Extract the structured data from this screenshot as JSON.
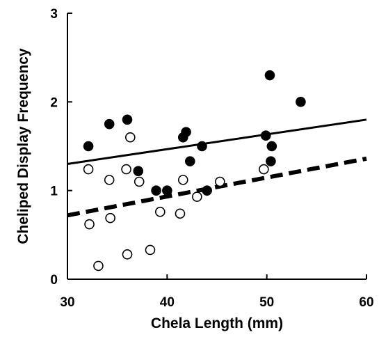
{
  "chart_data": {
    "type": "scatter",
    "title": "",
    "xlabel": "Chela Length (mm)",
    "ylabel": "Cheliped Display Frequency",
    "xlim": [
      30,
      60
    ],
    "ylim": [
      0,
      3
    ],
    "xticks": [
      30,
      40,
      50,
      60
    ],
    "yticks": [
      0,
      1,
      2,
      3
    ],
    "grid": false,
    "series": [
      {
        "marker": "filled-circle",
        "color": "#000000",
        "points": [
          [
            32.1,
            1.5
          ],
          [
            34.2,
            1.75
          ],
          [
            36.0,
            1.8
          ],
          [
            37.1,
            1.22
          ],
          [
            38.9,
            1.0
          ],
          [
            40.0,
            1.0
          ],
          [
            41.6,
            1.6
          ],
          [
            41.9,
            1.66
          ],
          [
            42.3,
            1.33
          ],
          [
            43.5,
            1.5
          ],
          [
            44.0,
            1.0
          ],
          [
            49.9,
            1.62
          ],
          [
            50.3,
            2.3
          ],
          [
            50.5,
            1.5
          ],
          [
            50.4,
            1.33
          ],
          [
            53.4,
            2.0
          ]
        ],
        "fit": {
          "style": "solid",
          "x": [
            30,
            60
          ],
          "y": [
            1.3,
            1.8
          ]
        }
      },
      {
        "marker": "open-circle",
        "color": "#000000",
        "points": [
          [
            32.1,
            1.24
          ],
          [
            32.2,
            0.62
          ],
          [
            33.1,
            0.15
          ],
          [
            34.2,
            1.12
          ],
          [
            34.3,
            0.69
          ],
          [
            35.9,
            1.24
          ],
          [
            36.3,
            1.6
          ],
          [
            36.0,
            0.28
          ],
          [
            37.2,
            1.1
          ],
          [
            38.3,
            0.33
          ],
          [
            39.3,
            0.76
          ],
          [
            41.3,
            0.74
          ],
          [
            41.6,
            1.12
          ],
          [
            43.0,
            0.93
          ],
          [
            45.3,
            1.1
          ],
          [
            49.7,
            1.24
          ]
        ],
        "fit": {
          "style": "dashed",
          "x": [
            30,
            60
          ],
          "y": [
            0.72,
            1.36
          ]
        }
      }
    ]
  }
}
